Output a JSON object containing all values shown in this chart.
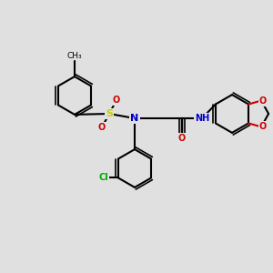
{
  "background_color": "#e0e0e0",
  "bond_color": "#000000",
  "bond_width": 1.5,
  "atom_colors": {
    "C": "#000000",
    "N": "#0000cc",
    "O": "#cc0000",
    "S": "#cccc00",
    "Cl": "#00aa00",
    "H": "#555555"
  },
  "font_size": 7,
  "figsize": [
    3.0,
    3.0
  ],
  "dpi": 100
}
